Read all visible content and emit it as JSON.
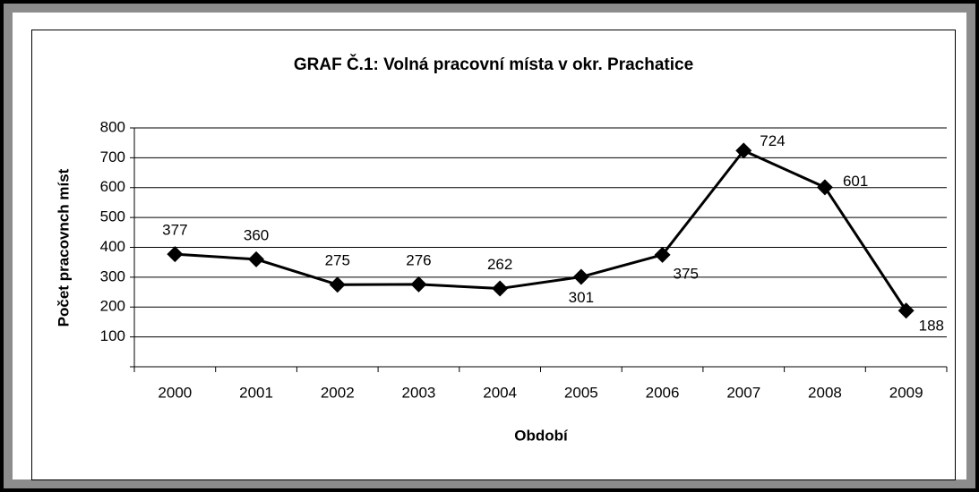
{
  "chart_data": {
    "type": "line",
    "title": "GRAF Č.1: Volná pracovní místa v okr. Prachatice",
    "x_label": "Období",
    "y_label": "Počet pracovnch míst",
    "categories": [
      "2000",
      "2001",
      "2002",
      "2003",
      "2004",
      "2005",
      "2006",
      "2007",
      "2008",
      "2009"
    ],
    "series": [
      {
        "name": "Volná pracovní místa",
        "color": "#000000",
        "values": [
          377,
          360,
          275,
          276,
          262,
          301,
          375,
          724,
          601,
          188
        ]
      }
    ],
    "ylim": [
      0,
      800
    ],
    "yticks": [
      100,
      200,
      300,
      400,
      500,
      600,
      700,
      800
    ],
    "grid": true,
    "legend": false
  }
}
